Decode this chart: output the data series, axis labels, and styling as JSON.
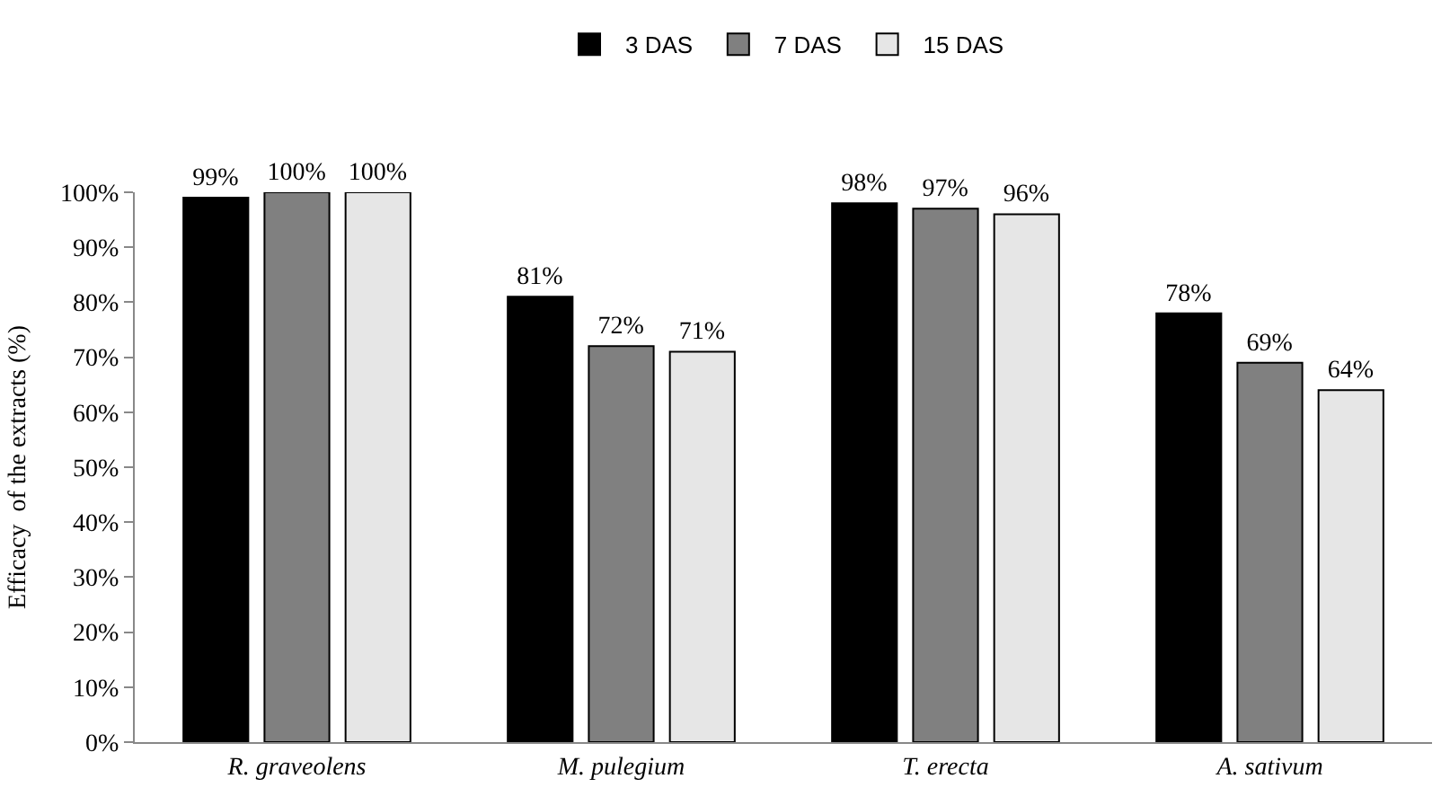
{
  "chart_data": {
    "type": "bar",
    "ylabel": "Efficacy  of the extracts (%)",
    "categories": [
      "R. graveolens",
      "M. pulegium",
      "T. erecta",
      "A. sativum"
    ],
    "series": [
      {
        "name": "3 DAS",
        "color": "#000000",
        "values": [
          99,
          81,
          98,
          78
        ],
        "value_labels": [
          "99%",
          "81%",
          "98%",
          "78%"
        ]
      },
      {
        "name": "7 DAS",
        "color": "#808080",
        "values": [
          100,
          72,
          97,
          69
        ],
        "value_labels": [
          "100%",
          "72%",
          "97%",
          "69%"
        ]
      },
      {
        "name": "15 DAS",
        "color": "#e6e6e6",
        "values": [
          100,
          71,
          96,
          64
        ],
        "value_labels": [
          "100%",
          "71%",
          "96%",
          "64%"
        ]
      }
    ],
    "ylim": [
      0,
      100
    ],
    "yticks": [
      {
        "value": 0,
        "label": "0%"
      },
      {
        "value": 10,
        "label": "10%"
      },
      {
        "value": 20,
        "label": "20%"
      },
      {
        "value": 30,
        "label": "30%"
      },
      {
        "value": 40,
        "label": "40%"
      },
      {
        "value": 50,
        "label": "50%"
      },
      {
        "value": 60,
        "label": "60%"
      },
      {
        "value": 70,
        "label": "70%"
      },
      {
        "value": 80,
        "label": "80%"
      },
      {
        "value": 90,
        "label": "90%"
      },
      {
        "value": 100,
        "label": "100%"
      }
    ],
    "grid": false,
    "legend": "top"
  }
}
